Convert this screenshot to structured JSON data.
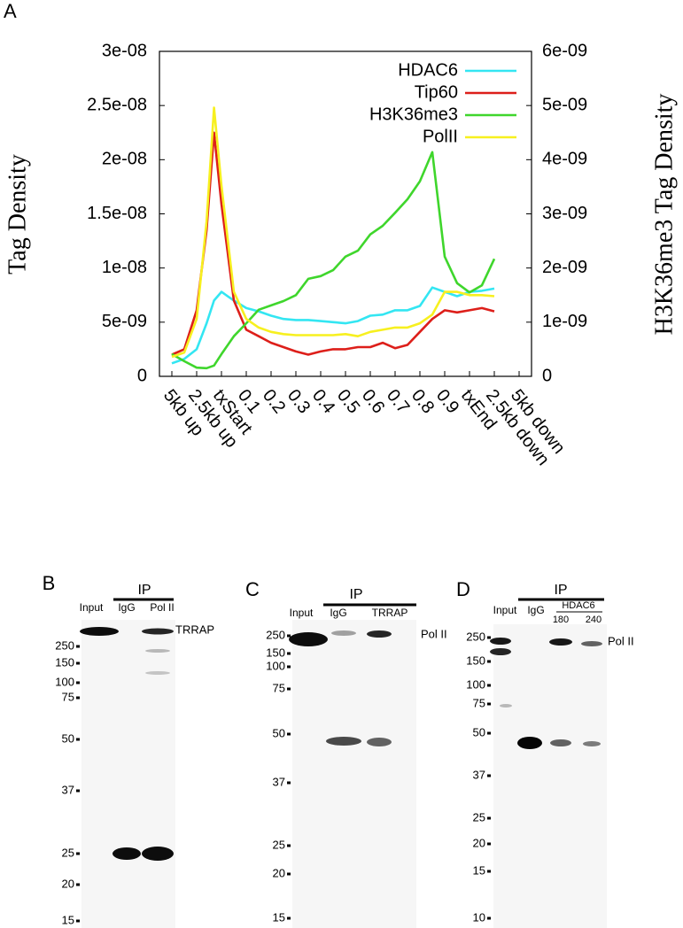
{
  "chart_data": {
    "type": "line",
    "panel": "A",
    "ylabel": "Tag Density",
    "y2label": "H3K36me3 Tag Density",
    "x": [
      0,
      0.5,
      1,
      1.4,
      1.7,
      2,
      2.5,
      3,
      3.5,
      4,
      4.5,
      5,
      5.5,
      6,
      6.5,
      7,
      7.5,
      8,
      8.5,
      9,
      9.5,
      10,
      10.5,
      11,
      11.5,
      12,
      12.5,
      13
    ],
    "xlim": [
      -0.5,
      14.5
    ],
    "xticks": [
      {
        "value": 0,
        "label": "5kb up"
      },
      {
        "value": 1,
        "label": "2.5kb up"
      },
      {
        "value": 2,
        "label": "txStart"
      },
      {
        "value": 3,
        "label": "0.1"
      },
      {
        "value": 4,
        "label": "0.2"
      },
      {
        "value": 5,
        "label": "0.3"
      },
      {
        "value": 6,
        "label": "0.4"
      },
      {
        "value": 7,
        "label": "0.5"
      },
      {
        "value": 8,
        "label": "0.6"
      },
      {
        "value": 9,
        "label": "0.7"
      },
      {
        "value": 10,
        "label": "0.8"
      },
      {
        "value": 11,
        "label": "0.9"
      },
      {
        "value": 12,
        "label": "txEnd"
      },
      {
        "value": 13,
        "label": "2.5kb down"
      },
      {
        "value": 14,
        "label": "5kb down"
      }
    ],
    "ylim": [
      0,
      3e-08
    ],
    "yticks": [
      0,
      {
        "value": 5e-09,
        "label": "5e-09"
      },
      {
        "value": 1e-08,
        "label": "1e-08"
      },
      {
        "value": 1.5e-08,
        "label": "1.5e-08"
      },
      {
        "value": 2e-08,
        "label": "2e-08"
      },
      {
        "value": 2.5e-08,
        "label": "2.5e-08"
      },
      {
        "value": 3e-08,
        "label": "3e-08"
      }
    ],
    "y2lim": [
      0,
      6e-09
    ],
    "y2ticks": [
      0,
      {
        "value": 1e-09,
        "label": "1e-09"
      },
      {
        "value": 2e-09,
        "label": "2e-09"
      },
      {
        "value": 3e-09,
        "label": "3e-09"
      },
      {
        "value": 4e-09,
        "label": "4e-09"
      },
      {
        "value": 5e-09,
        "label": "5e-09"
      },
      {
        "value": 6e-09,
        "label": "6e-09"
      }
    ],
    "legend": "upper right",
    "series": [
      {
        "name": "HDAC6",
        "color": "#33e6f2",
        "values": [
          1.2e-09,
          1.6e-09,
          2.5e-09,
          4.9e-09,
          7e-09,
          7.8e-09,
          7e-09,
          6.3e-09,
          6e-09,
          5.6e-09,
          5.3e-09,
          5.2e-09,
          5.2e-09,
          5.1e-09,
          5e-09,
          4.9e-09,
          5.1e-09,
          5.6e-09,
          5.7e-09,
          6.1e-09,
          6.1e-09,
          6.5e-09,
          8.2e-09,
          7.8e-09,
          7.4e-09,
          7.8e-09,
          7.9e-09,
          8.1e-09
        ]
      },
      {
        "name": "Tip60",
        "color": "#dd1f1a",
        "values": [
          2e-09,
          2.5e-09,
          6.1e-09,
          1.35e-08,
          2.25e-08,
          1.59e-08,
          7e-09,
          4.3e-09,
          3.7e-09,
          3.1e-09,
          2.7e-09,
          2.3e-09,
          2e-09,
          2.3e-09,
          2.5e-09,
          2.5e-09,
          2.7e-09,
          2.7e-09,
          3.1e-09,
          2.6e-09,
          2.9e-09,
          4.1e-09,
          5.3e-09,
          6.1e-09,
          5.9e-09,
          6.1e-09,
          6.3e-09,
          6e-09
        ]
      },
      {
        "name": "H3K36me3",
        "color": "#3fd62c",
        "axis": "y2",
        "values": [
          4.1e-10,
          2.8e-10,
          1.6e-10,
          1.5e-10,
          2e-10,
          4.1e-10,
          7.4e-10,
          9.8e-10,
          1.23e-09,
          1.31e-09,
          1.39e-09,
          1.5e-09,
          1.8e-09,
          1.85e-09,
          1.96e-09,
          2.21e-09,
          2.32e-09,
          2.62e-09,
          2.78e-09,
          3.02e-09,
          3.27e-09,
          3.6e-09,
          4.14e-09,
          2.21e-09,
          1.72e-09,
          1.55e-09,
          1.68e-09,
          2.17e-09
        ]
      },
      {
        "name": "PolII",
        "color": "#f7f01f",
        "values": [
          1.8e-09,
          2.2e-09,
          5.3e-09,
          1.43e-08,
          2.48e-08,
          1.76e-08,
          7.8e-09,
          5.3e-09,
          4.5e-09,
          4.1e-09,
          3.9e-09,
          3.8e-09,
          3.8e-09,
          3.8e-09,
          3.8e-09,
          3.9e-09,
          3.7e-09,
          4.1e-09,
          4.3e-09,
          4.5e-09,
          4.5e-09,
          4.9e-09,
          5.7e-09,
          7.8e-09,
          7.8e-09,
          7.5e-09,
          7.5e-09,
          7.4e-09
        ]
      }
    ]
  },
  "blots": [
    {
      "letter": "B",
      "ip": "IP",
      "lanes": [
        "Input",
        "IgG",
        "Pol II"
      ],
      "markers": [
        250,
        150,
        100,
        75,
        50,
        37,
        25,
        20,
        15
      ],
      "band_label": "TRRAP"
    },
    {
      "letter": "C",
      "ip": "IP",
      "lanes": [
        "Input",
        "IgG",
        "TRRAP"
      ],
      "markers": [
        250,
        150,
        100,
        75,
        50,
        37,
        25,
        20,
        15
      ],
      "band_label": "Pol II"
    },
    {
      "letter": "D",
      "ip": "IP",
      "lanes": [
        "Input",
        "IgG"
      ],
      "group": {
        "label": "HDAC6",
        "lanes": [
          "180",
          "240"
        ]
      },
      "markers": [
        250,
        150,
        100,
        75,
        50,
        37,
        25,
        20,
        15,
        10
      ],
      "band_label": "Pol II"
    }
  ]
}
